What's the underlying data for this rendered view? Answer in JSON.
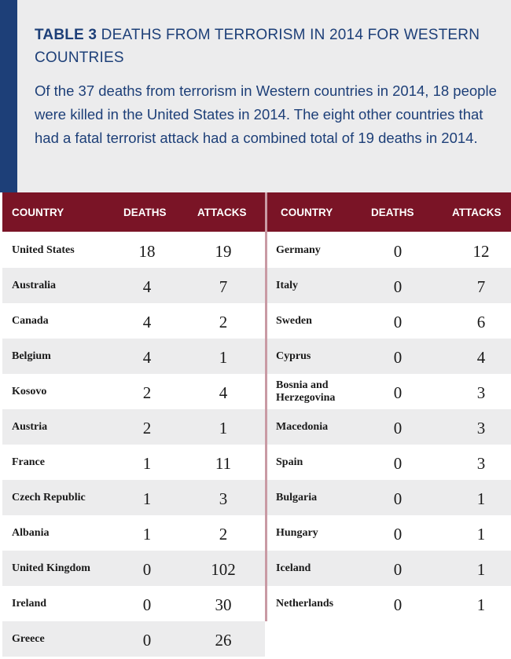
{
  "header": {
    "label": "TABLE 3",
    "title": "DEATHS FROM TERRORISM IN 2014 FOR WESTERN COUNTRIES",
    "description": "Of the 37 deaths from terrorism in Western countries in 2014, 18 people were killed in the United States in 2014. The eight other countries that had a fatal terrorist attack had a combined total of 19 deaths in 2014."
  },
  "columns": {
    "country": "COUNTRY",
    "deaths": "DEATHS",
    "attacks": "ATTACKS"
  },
  "colors": {
    "accent_blue": "#1d3f78",
    "header_red": "#7a1426",
    "band_gray": "#ececed"
  },
  "left_rows": [
    {
      "country": "United States",
      "deaths": "18",
      "attacks": "19"
    },
    {
      "country": "Australia",
      "deaths": "4",
      "attacks": "7"
    },
    {
      "country": "Canada",
      "deaths": "4",
      "attacks": "2"
    },
    {
      "country": "Belgium",
      "deaths": "4",
      "attacks": "1"
    },
    {
      "country": "Kosovo",
      "deaths": "2",
      "attacks": "4"
    },
    {
      "country": "Austria",
      "deaths": "2",
      "attacks": "1"
    },
    {
      "country": "France",
      "deaths": "1",
      "attacks": "11"
    },
    {
      "country": "Czech Republic",
      "deaths": "1",
      "attacks": "3"
    },
    {
      "country": "Albania",
      "deaths": "1",
      "attacks": "2"
    },
    {
      "country": "United Kingdom",
      "deaths": "0",
      "attacks": "102"
    },
    {
      "country": "Ireland",
      "deaths": "0",
      "attacks": "30"
    },
    {
      "country": "Greece",
      "deaths": "0",
      "attacks": "26"
    }
  ],
  "right_rows": [
    {
      "country": "Germany",
      "deaths": "0",
      "attacks": "12"
    },
    {
      "country": "Italy",
      "deaths": "0",
      "attacks": "7"
    },
    {
      "country": "Sweden",
      "deaths": "0",
      "attacks": "6"
    },
    {
      "country": "Cyprus",
      "deaths": "0",
      "attacks": "4"
    },
    {
      "country": "Bosnia and Herzegovina",
      "deaths": "0",
      "attacks": "3"
    },
    {
      "country": "Macedonia",
      "deaths": "0",
      "attacks": "3"
    },
    {
      "country": "Spain",
      "deaths": "0",
      "attacks": "3"
    },
    {
      "country": "Bulgaria",
      "deaths": "0",
      "attacks": "1"
    },
    {
      "country": "Hungary",
      "deaths": "0",
      "attacks": "1"
    },
    {
      "country": "Iceland",
      "deaths": "0",
      "attacks": "1"
    },
    {
      "country": "Netherlands",
      "deaths": "0",
      "attacks": "1"
    }
  ]
}
